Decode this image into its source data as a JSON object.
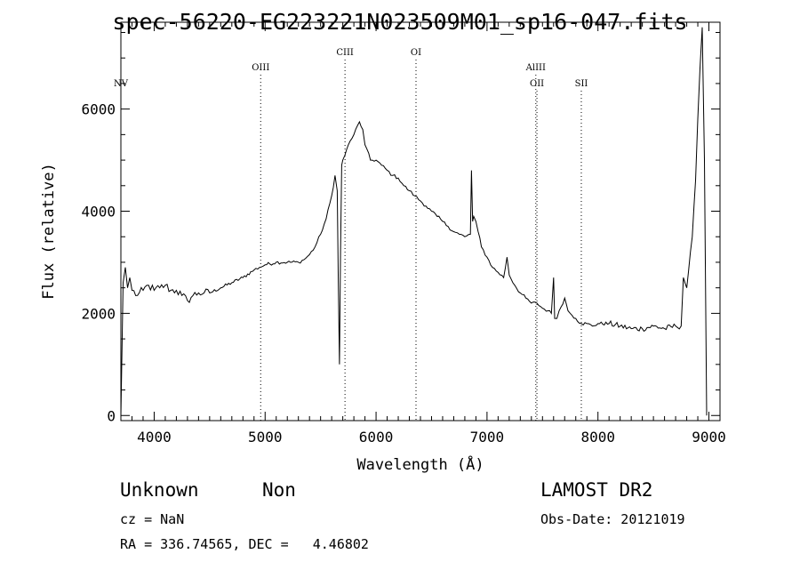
{
  "title": "spec-56220-EG223221N023509M01_sp16-047.fits",
  "info": {
    "class": "Unknown",
    "subclass": "Non",
    "survey": "LAMOST DR2",
    "cz": "cz = NaN",
    "obs_date": "Obs-Date: 20121019",
    "radec": "RA = 336.74565, DEC =   4.46802"
  },
  "chart_data": {
    "type": "line",
    "title": "spec-56220-EG223221N023509M01_sp16-047.fits",
    "xlabel": "Wavelength (Å)",
    "ylabel": "Flux (relative)",
    "xlim": [
      3700,
      9100
    ],
    "ylim": [
      -100,
      7700
    ],
    "xticks": [
      4000,
      5000,
      6000,
      7000,
      8000,
      9000
    ],
    "yticks": [
      0,
      2000,
      4000,
      6000
    ],
    "grid": false,
    "lines": [
      {
        "name": "NV",
        "x": 3700,
        "tier": 3
      },
      {
        "name": "OIII",
        "x": 4960,
        "tier": 1
      },
      {
        "name": "CIII",
        "x": 5720,
        "tier": 0
      },
      {
        "name": "OI",
        "x": 6360,
        "tier": 0
      },
      {
        "name": "AlIII",
        "x": 7440,
        "tier": 1
      },
      {
        "name": "OII",
        "x": 7450,
        "tier": 2
      },
      {
        "name": "SII",
        "x": 7850,
        "tier": 2
      }
    ],
    "series": [
      {
        "x": [
          3700,
          3720,
          3740,
          3760,
          3780,
          3800,
          3850,
          3900,
          3950,
          4000,
          4050,
          4100,
          4150,
          4200,
          4250,
          4300,
          4350,
          4400,
          4450,
          4500,
          4600,
          4700,
          4800,
          4900,
          4950,
          5000,
          5100,
          5200,
          5300,
          5350,
          5400,
          5450,
          5500,
          5550,
          5600,
          5630,
          5650,
          5660,
          5670,
          5680,
          5690,
          5700,
          5720,
          5750,
          5800,
          5850,
          5880,
          5900,
          5950,
          6000,
          6050,
          6100,
          6150,
          6200,
          6250,
          6300,
          6350,
          6400,
          6450,
          6500,
          6550,
          6600,
          6650,
          6700,
          6750,
          6800,
          6850,
          6860,
          6870,
          6880,
          6900,
          6920,
          6950,
          7000,
          7050,
          7100,
          7150,
          7180,
          7200,
          7250,
          7300,
          7350,
          7400,
          7450,
          7500,
          7550,
          7580,
          7600,
          7610,
          7630,
          7650,
          7700,
          7730,
          7750,
          7800,
          7850,
          7900,
          7950,
          8000,
          8100,
          8200,
          8300,
          8400,
          8500,
          8600,
          8700,
          8750,
          8770,
          8800,
          8850,
          8880,
          8900,
          8920,
          8940,
          8960,
          8980
        ],
        "y": [
          0,
          2600,
          2900,
          2500,
          2700,
          2450,
          2350,
          2450,
          2550,
          2450,
          2500,
          2550,
          2450,
          2450,
          2350,
          2250,
          2350,
          2400,
          2400,
          2400,
          2500,
          2600,
          2700,
          2850,
          2900,
          2950,
          3000,
          3000,
          3000,
          3050,
          3150,
          3300,
          3550,
          3850,
          4300,
          4700,
          4400,
          2600,
          1000,
          3200,
          4900,
          5000,
          5100,
          5300,
          5500,
          5750,
          5600,
          5300,
          5000,
          5000,
          4900,
          4800,
          4700,
          4650,
          4500,
          4400,
          4300,
          4200,
          4100,
          4000,
          3900,
          3800,
          3700,
          3600,
          3550,
          3500,
          3550,
          4800,
          3800,
          3900,
          3800,
          3600,
          3300,
          3100,
          2900,
          2800,
          2700,
          3100,
          2750,
          2550,
          2400,
          2300,
          2200,
          2200,
          2100,
          2050,
          2000,
          2700,
          1900,
          1900,
          2050,
          2300,
          2050,
          2000,
          1900,
          1800,
          1800,
          1750,
          1800,
          1800,
          1750,
          1700,
          1700,
          1750,
          1700,
          1750,
          1750,
          2700,
          2500,
          3500,
          4600,
          5800,
          6800,
          7600,
          5000,
          0
        ]
      }
    ]
  }
}
